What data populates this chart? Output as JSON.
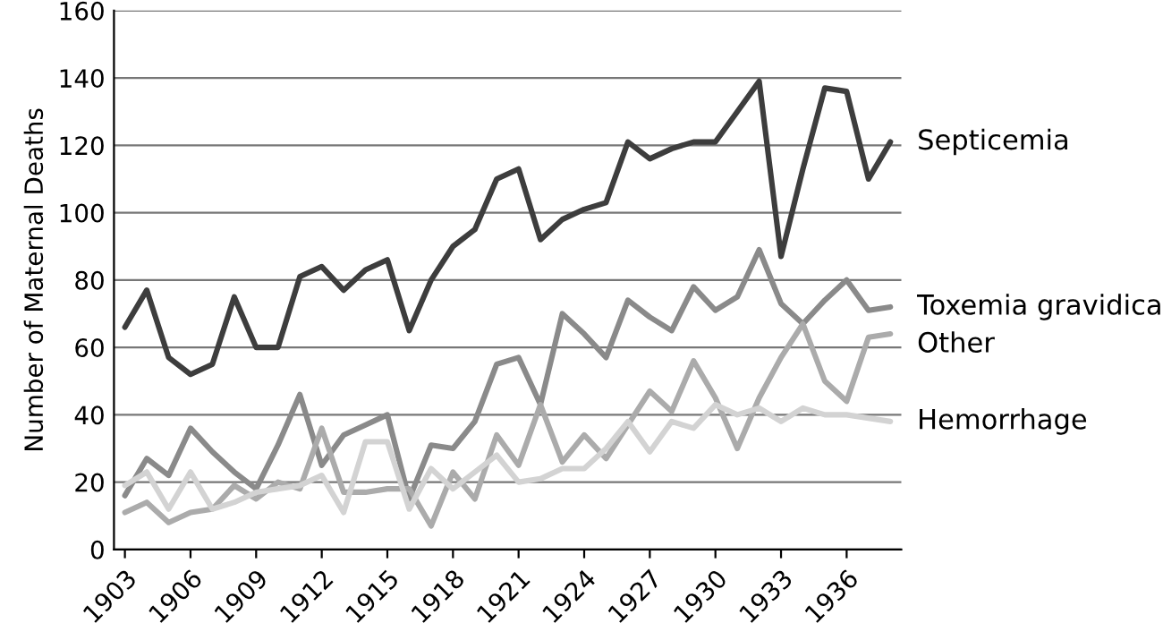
{
  "chart_data": {
    "type": "line",
    "ylabel": "Number of Maternal Deaths",
    "x": [
      1903,
      1904,
      1905,
      1906,
      1907,
      1908,
      1909,
      1910,
      1911,
      1912,
      1913,
      1914,
      1915,
      1916,
      1917,
      1918,
      1919,
      1920,
      1921,
      1922,
      1923,
      1924,
      1925,
      1926,
      1927,
      1928,
      1929,
      1930,
      1931,
      1932,
      1933,
      1934,
      1935,
      1936,
      1937,
      1938
    ],
    "series": [
      {
        "name": "Septicemia",
        "color": "#3d3d3d",
        "values": [
          66,
          77,
          57,
          52,
          55,
          75,
          60,
          60,
          81,
          84,
          77,
          83,
          86,
          65,
          80,
          90,
          95,
          110,
          113,
          92,
          98,
          101,
          103,
          121,
          116,
          119,
          121,
          121,
          130,
          139,
          87,
          113,
          137,
          136,
          110,
          121
        ]
      },
      {
        "name": "Toxemia gravidica",
        "color": "#8a8a8a",
        "values": [
          16,
          27,
          22,
          36,
          29,
          23,
          18,
          31,
          46,
          25,
          34,
          37,
          40,
          15,
          31,
          30,
          38,
          55,
          57,
          43,
          70,
          64,
          57,
          74,
          69,
          65,
          78,
          71,
          75,
          89,
          73,
          67,
          74,
          80,
          71,
          72
        ]
      },
      {
        "name": "Other",
        "color": "#ababab",
        "values": [
          11,
          14,
          8,
          11,
          12,
          19,
          15,
          20,
          18,
          36,
          17,
          17,
          18,
          18,
          7,
          23,
          15,
          34,
          25,
          43,
          26,
          34,
          27,
          37,
          47,
          41,
          56,
          45,
          30,
          45,
          57,
          67,
          50,
          44,
          63,
          64
        ]
      },
      {
        "name": "Hemorrhage",
        "color": "#d3d3d3",
        "values": [
          19,
          23,
          12,
          23,
          12,
          14,
          17,
          18,
          19,
          22,
          11,
          32,
          32,
          12,
          24,
          18,
          23,
          28,
          20,
          21,
          24,
          24,
          30,
          38,
          29,
          38,
          36,
          43,
          40,
          42,
          38,
          42,
          40,
          40,
          39,
          38
        ]
      }
    ],
    "xlim": [
      1902.5,
      1938.5
    ],
    "xticks": [
      1903,
      1906,
      1909,
      1912,
      1915,
      1918,
      1921,
      1924,
      1927,
      1930,
      1933,
      1936
    ],
    "ylim": [
      0,
      160
    ],
    "yticks": [
      0,
      20,
      40,
      60,
      80,
      100,
      120,
      140,
      160
    ],
    "grid": "y",
    "legend": false,
    "marker": "none",
    "line_style": "solid"
  }
}
